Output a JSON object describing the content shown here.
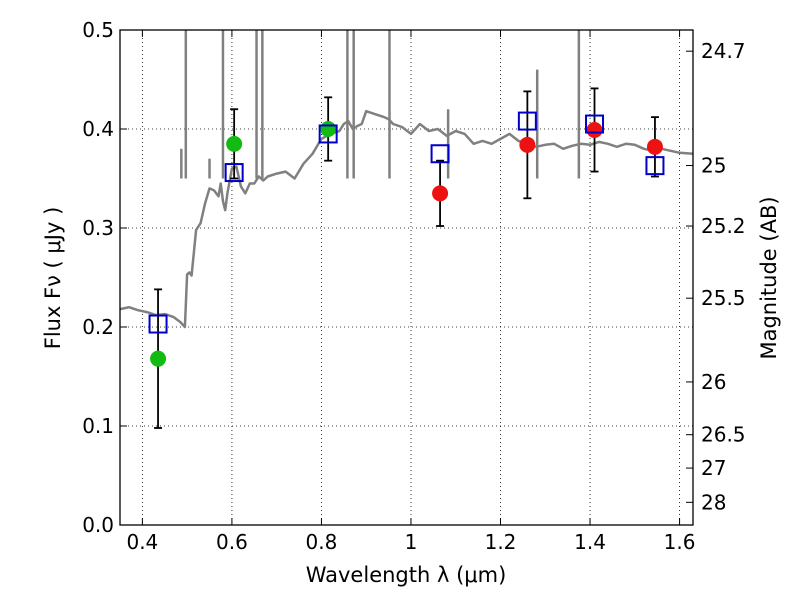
{
  "chart_data": {
    "type": "scatter",
    "xlabel": "Wavelength  λ (μm)",
    "ylabel": "Flux  Fν  ( μJy )",
    "y2label": "Magnitude (AB)",
    "xlim": [
      0.35,
      1.63
    ],
    "ylim": [
      0.0,
      0.5
    ],
    "grid": true,
    "x_ticks": [
      0.4,
      0.6,
      0.8,
      1.0,
      1.2,
      1.4,
      1.6
    ],
    "x_tick_labels": [
      "0.4",
      "0.6",
      "0.8",
      "1",
      "1.2",
      "1.4",
      "1.6"
    ],
    "y_ticks": [
      0.0,
      0.1,
      0.2,
      0.3,
      0.4,
      0.5
    ],
    "y_tick_labels": [
      "0.0",
      "0.1",
      "0.2",
      "0.3",
      "0.4",
      "0.5"
    ],
    "y2_ticks": [
      {
        "label": "24.7",
        "flux": 0.4786
      },
      {
        "label": "25",
        "flux": 0.3631
      },
      {
        "label": "25.2",
        "flux": 0.302
      },
      {
        "label": "25.5",
        "flux": 0.2291
      },
      {
        "label": "26",
        "flux": 0.1445
      },
      {
        "label": "26.5",
        "flux": 0.0912
      },
      {
        "label": "27",
        "flux": 0.0575
      },
      {
        "label": "28",
        "flux": 0.0229
      }
    ],
    "colors": {
      "spectrum": "#808080",
      "optical_points": "#11bb11",
      "nir_points": "#ee1111",
      "model_points": "#0000cc",
      "errorbar": "#000000"
    },
    "series": [
      {
        "kind": "spectrum",
        "color": "#808080",
        "x": [
          0.35,
          0.37,
          0.39,
          0.41,
          0.43,
          0.45,
          0.47,
          0.485,
          0.495,
          0.5,
          0.505,
          0.51,
          0.52,
          0.53,
          0.54,
          0.55,
          0.56,
          0.57,
          0.575,
          0.58,
          0.585,
          0.59,
          0.6,
          0.61,
          0.62,
          0.63,
          0.64,
          0.65,
          0.66,
          0.665,
          0.67,
          0.68,
          0.7,
          0.72,
          0.74,
          0.76,
          0.78,
          0.8,
          0.82,
          0.84,
          0.85,
          0.86,
          0.87,
          0.88,
          0.89,
          0.9,
          0.92,
          0.94,
          0.95,
          0.96,
          0.98,
          1.0,
          1.02,
          1.04,
          1.06,
          1.08,
          1.1,
          1.12,
          1.14,
          1.16,
          1.18,
          1.2,
          1.22,
          1.24,
          1.26,
          1.28,
          1.3,
          1.32,
          1.34,
          1.36,
          1.38,
          1.4,
          1.42,
          1.44,
          1.46,
          1.48,
          1.5,
          1.52,
          1.54,
          1.56,
          1.58,
          1.6,
          1.63
        ],
        "y": [
          0.218,
          0.22,
          0.217,
          0.215,
          0.212,
          0.213,
          0.21,
          0.205,
          0.2,
          0.253,
          0.255,
          0.252,
          0.298,
          0.305,
          0.325,
          0.34,
          0.338,
          0.332,
          0.345,
          0.327,
          0.318,
          0.335,
          0.36,
          0.362,
          0.342,
          0.335,
          0.345,
          0.345,
          0.352,
          0.35,
          0.348,
          0.352,
          0.355,
          0.357,
          0.35,
          0.365,
          0.375,
          0.39,
          0.395,
          0.398,
          0.405,
          0.408,
          0.4,
          0.403,
          0.405,
          0.418,
          0.415,
          0.412,
          0.41,
          0.405,
          0.402,
          0.395,
          0.405,
          0.398,
          0.4,
          0.393,
          0.398,
          0.395,
          0.385,
          0.388,
          0.385,
          0.39,
          0.395,
          0.388,
          0.385,
          0.382,
          0.384,
          0.385,
          0.38,
          0.383,
          0.385,
          0.384,
          0.387,
          0.385,
          0.382,
          0.385,
          0.384,
          0.38,
          0.378,
          0.38,
          0.378,
          0.376,
          0.375
        ]
      },
      {
        "kind": "spectrum-lines",
        "color": "#808080",
        "x": [
          0.487,
          0.497,
          0.55,
          0.58,
          0.655,
          0.668,
          0.858,
          0.872,
          0.952,
          1.083,
          1.282,
          1.375
        ],
        "y": [
          0.38,
          0.5,
          0.37,
          0.5,
          0.5,
          0.5,
          0.5,
          0.5,
          0.5,
          0.42,
          0.46,
          0.5
        ]
      },
      {
        "kind": "points-with-errors",
        "color": "#11bb11",
        "x": [
          0.435,
          0.605,
          0.815
        ],
        "y": [
          0.168,
          0.385,
          0.4
        ],
        "err": [
          0.07,
          0.035,
          0.032
        ]
      },
      {
        "kind": "points-with-errors",
        "color": "#ee1111",
        "x": [
          1.065,
          1.26,
          1.41,
          1.545
        ],
        "y": [
          0.335,
          0.384,
          0.399,
          0.382
        ],
        "err": [
          0.033,
          0.054,
          0.042,
          0.03
        ]
      },
      {
        "kind": "open-squares",
        "color": "#0000cc",
        "x": [
          0.435,
          0.605,
          0.815,
          1.065,
          1.26,
          1.41,
          1.545
        ],
        "y": [
          0.203,
          0.356,
          0.395,
          0.375,
          0.408,
          0.405,
          0.363
        ]
      }
    ]
  }
}
